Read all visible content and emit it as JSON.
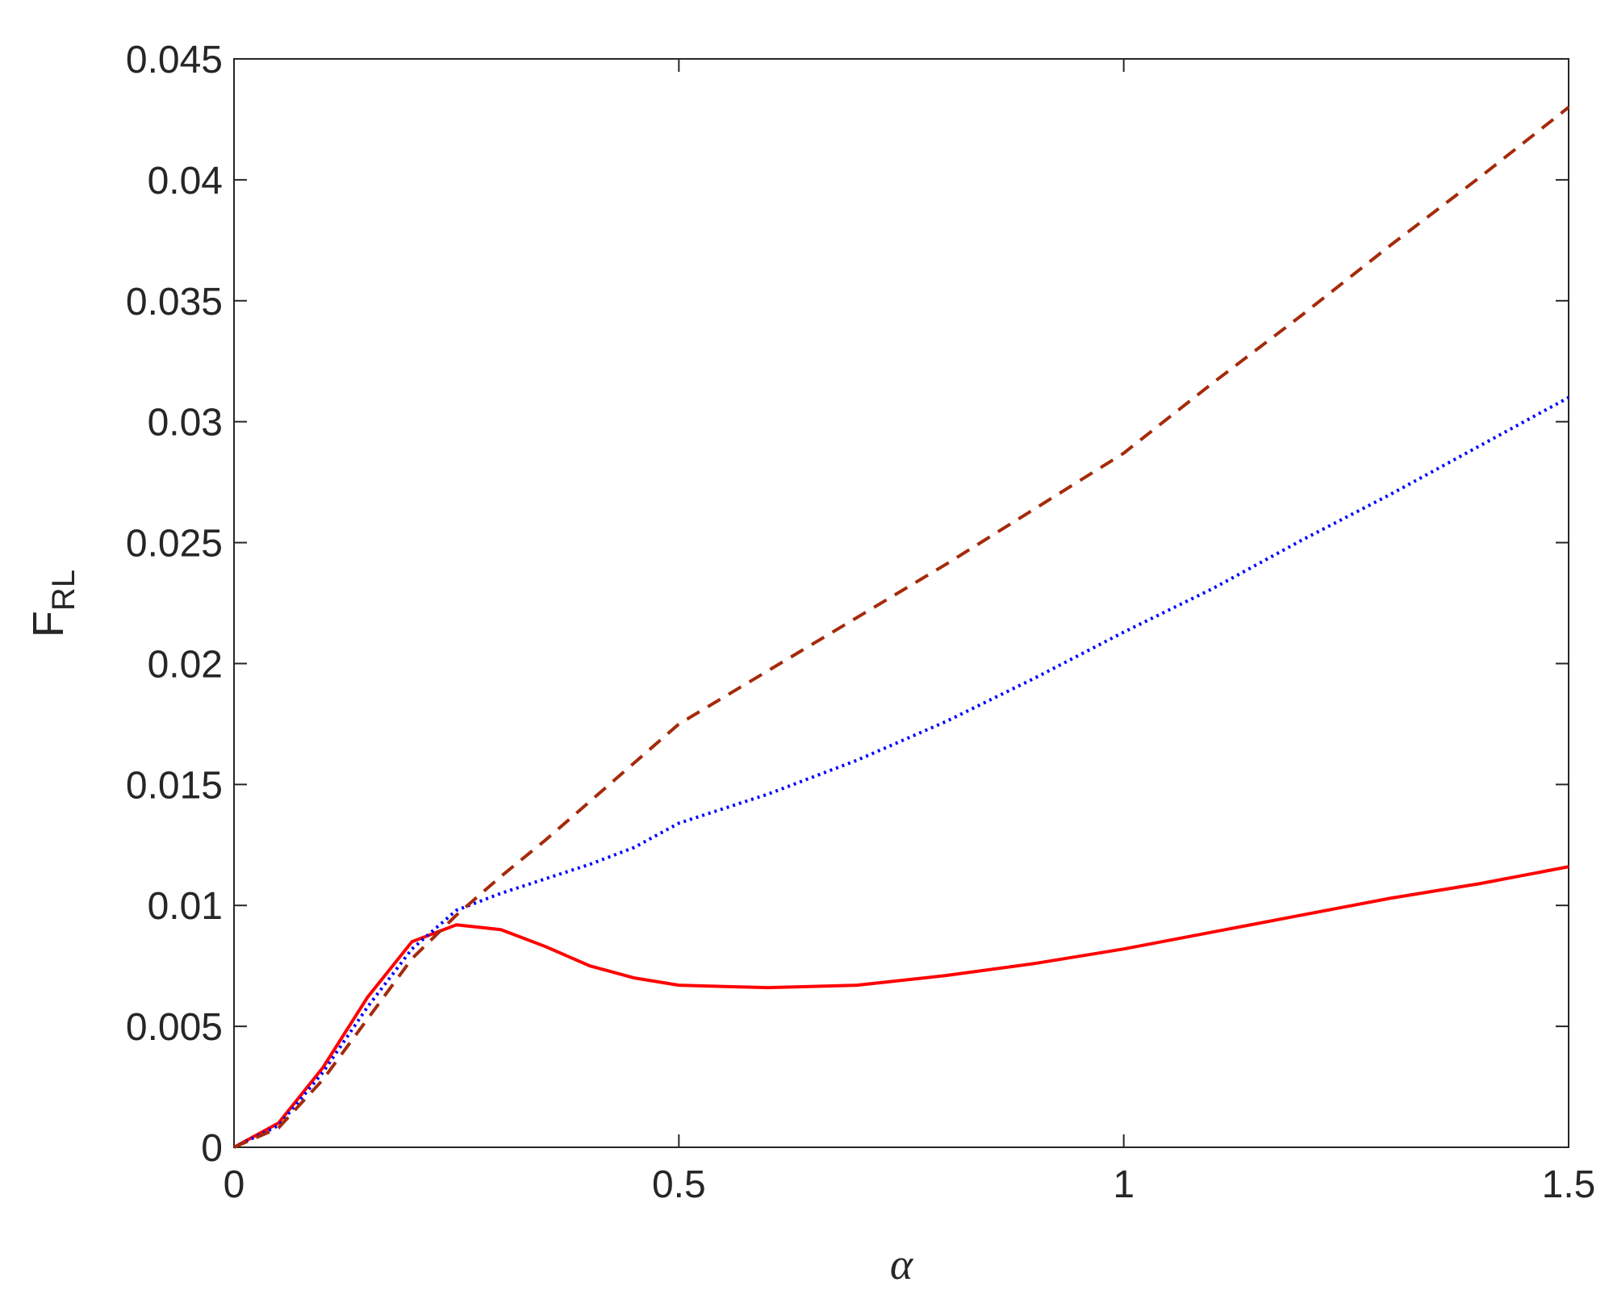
{
  "chart_data": {
    "type": "line",
    "xlabel": "α",
    "ylabel": "F",
    "ylabel_subscript": "RL",
    "xlim": [
      0,
      1.5
    ],
    "ylim": [
      0,
      0.045
    ],
    "xticks": [
      0,
      0.5,
      1,
      1.5
    ],
    "yticks": [
      0,
      0.005,
      0.01,
      0.015,
      0.02,
      0.025,
      0.03,
      0.035,
      0.04,
      0.045
    ],
    "x": [
      0,
      0.05,
      0.1,
      0.15,
      0.2,
      0.25,
      0.3,
      0.35,
      0.4,
      0.45,
      0.5,
      0.6,
      0.7,
      0.8,
      0.9,
      1.0,
      1.1,
      1.2,
      1.3,
      1.4,
      1.5
    ],
    "series": [
      {
        "color": "#ff0000",
        "style": "solid",
        "values": [
          0,
          0.001,
          0.0033,
          0.0062,
          0.0085,
          0.0092,
          0.009,
          0.0083,
          0.0075,
          0.007,
          0.0067,
          0.0066,
          0.0067,
          0.0071,
          0.0076,
          0.0082,
          0.0089,
          0.0096,
          0.0103,
          0.0109,
          0.0116
        ]
      },
      {
        "color": "#0000ff",
        "style": "dotted",
        "values": [
          0,
          0.0009,
          0.0031,
          0.0058,
          0.0082,
          0.0098,
          0.0105,
          0.0111,
          0.0117,
          0.0124,
          0.0134,
          0.0146,
          0.016,
          0.0176,
          0.0194,
          0.0213,
          0.0231,
          0.0251,
          0.027,
          0.029,
          0.031
        ]
      },
      {
        "color": "#a52a0a",
        "style": "dashed",
        "values": [
          0,
          0.0008,
          0.0028,
          0.0053,
          0.0078,
          0.0096,
          0.0112,
          0.0127,
          0.0143,
          0.0159,
          0.0175,
          0.0197,
          0.0219,
          0.0241,
          0.0264,
          0.0287,
          0.0316,
          0.0344,
          0.0373,
          0.0401,
          0.043
        ]
      }
    ]
  }
}
